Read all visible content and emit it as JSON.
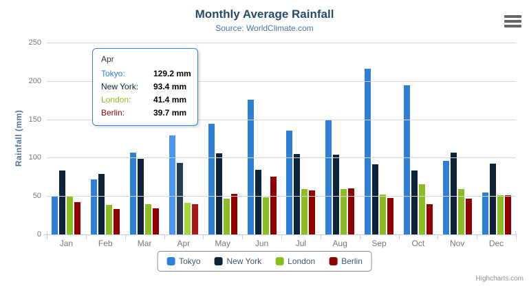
{
  "header": {
    "title": "Monthly Average Rainfall",
    "subtitle": "Source: WorldClimate.com"
  },
  "chart_data": {
    "type": "bar",
    "title": "Monthly Average Rainfall",
    "subtitle": "Source: WorldClimate.com",
    "xlabel": "",
    "ylabel": "Rainfall (mm)",
    "ylim": [
      0,
      250
    ],
    "yticks": [
      0,
      50,
      100,
      150,
      200,
      250
    ],
    "grid": true,
    "legend_position": "bottom",
    "categories": [
      "Jan",
      "Feb",
      "Mar",
      "Apr",
      "May",
      "Jun",
      "Jul",
      "Aug",
      "Sep",
      "Oct",
      "Nov",
      "Dec"
    ],
    "hovered_category": "Apr",
    "series": [
      {
        "name": "Tokyo",
        "color": "#2f7ed8",
        "hover_color": "#4897f1",
        "values": [
          49.9,
          71.5,
          106.4,
          129.2,
          144.0,
          176.0,
          135.6,
          148.5,
          216.4,
          194.1,
          95.6,
          54.4
        ]
      },
      {
        "name": "New York",
        "color": "#0d233a",
        "hover_color": "#263c53",
        "values": [
          83.6,
          78.8,
          98.5,
          93.4,
          106.0,
          84.5,
          105.0,
          104.3,
          91.2,
          83.5,
          106.6,
          92.3
        ]
      },
      {
        "name": "London",
        "color": "#8bbc21",
        "hover_color": "#a4d53a",
        "values": [
          48.9,
          38.8,
          39.3,
          41.4,
          47.0,
          48.3,
          59.0,
          59.6,
          52.4,
          65.2,
          59.3,
          51.2
        ]
      },
      {
        "name": "Berlin",
        "color": "#910000",
        "hover_color": "#aa1919",
        "values": [
          42.4,
          33.2,
          34.5,
          39.7,
          52.6,
          75.5,
          57.4,
          60.4,
          47.6,
          39.1,
          46.8,
          51.1
        ]
      }
    ]
  },
  "tooltip": {
    "header": "Apr",
    "rows": [
      {
        "label": "Tokyo:",
        "value": "129.2 mm",
        "color": "#2f7ed8"
      },
      {
        "label": "New York:",
        "value": "93.4 mm",
        "color": "#0d233a"
      },
      {
        "label": "London:",
        "value": "41.4 mm",
        "color": "#8bbc21"
      },
      {
        "label": "Berlin:",
        "value": "39.7 mm",
        "color": "#910000"
      }
    ]
  },
  "credits": {
    "label": "Highcharts.com"
  },
  "icons": {
    "menu": "hamburger-menu-icon"
  },
  "colors": {
    "title": "#274b6d",
    "subtitle": "#4d759e",
    "axis_label": "#777777",
    "gridline": "#d8d8d8",
    "axis_line": "#c0d0e0",
    "legend_text": "#3e576f",
    "tooltip_border": "#2f7ed8"
  }
}
